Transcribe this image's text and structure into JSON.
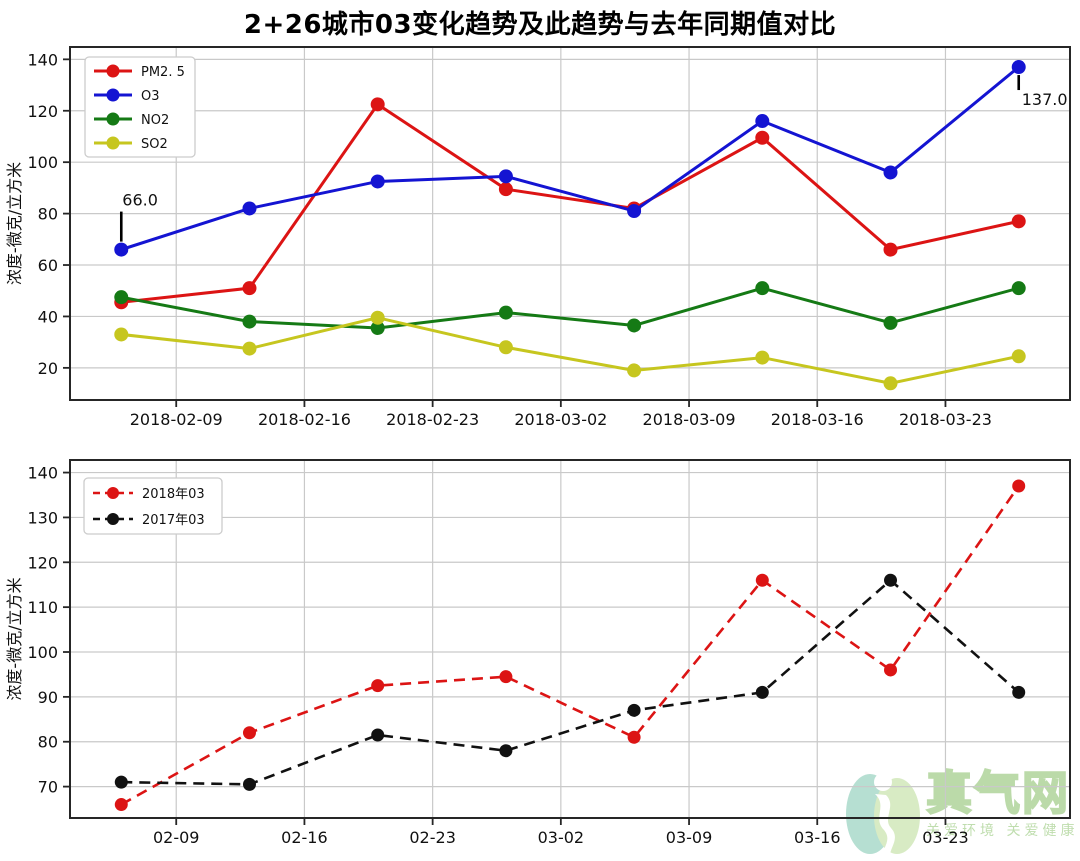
{
  "page": {
    "title": "2+26城市03变化趋势及此趋势与去年同期值对比",
    "background": "#ffffff"
  },
  "watermark": {
    "brand": "真气网",
    "slogan": "关爱环境 关爱健康",
    "logo_teal": "#7cc5ae",
    "logo_green": "#b9dc95",
    "text_green": "#8cc36d"
  },
  "chart_data": [
    {
      "type": "line",
      "title": "2+26城市03变化趋势及此趋势与去年同期值对比",
      "xlabel": "",
      "ylabel": "浓度-微克/立方米",
      "grid": true,
      "legend_position": "upper left",
      "x_tick_labels": [
        "2018-02-09",
        "2018-02-16",
        "2018-02-23",
        "2018-03-02",
        "2018-03-09",
        "2018-03-16",
        "2018-03-23"
      ],
      "x_tick_days": [
        0,
        7,
        14,
        21,
        28,
        35,
        42
      ],
      "x_days": [
        -3,
        4,
        11,
        18,
        25,
        32,
        39,
        46
      ],
      "xlim": [
        -5.8,
        48.8
      ],
      "y_ticks": [
        20,
        40,
        60,
        80,
        100,
        120,
        140
      ],
      "ylim": [
        7.5,
        144.8
      ],
      "series": [
        {
          "name": "PM2. 5",
          "color": "#dc1414",
          "dash": "solid",
          "values": [
            45.5,
            51,
            122.5,
            89.5,
            82,
            109.5,
            66,
            77
          ]
        },
        {
          "name": "O3",
          "color": "#1414d2",
          "dash": "solid",
          "values": [
            66,
            82,
            92.5,
            94.5,
            81,
            116,
            96,
            137
          ]
        },
        {
          "name": "NO2",
          "color": "#157a15",
          "dash": "solid",
          "values": [
            47.5,
            38,
            35.5,
            41.5,
            36.5,
            51,
            37.5,
            51
          ]
        },
        {
          "name": "SO2",
          "color": "#c6c61f",
          "dash": "solid",
          "values": [
            33,
            27.5,
            39.5,
            28,
            19,
            24,
            14,
            24.5
          ]
        }
      ],
      "annotations": [
        {
          "text": "66.0",
          "x_day": -3,
          "y": 66,
          "dir": "up"
        },
        {
          "text": "137.0",
          "x_day": 46,
          "y": 137,
          "dir": "down"
        }
      ]
    },
    {
      "type": "line",
      "title": "",
      "xlabel": "",
      "ylabel": "浓度-微克/立方米",
      "grid": true,
      "legend_position": "upper left",
      "x_tick_labels": [
        "02-09",
        "02-16",
        "02-23",
        "03-02",
        "03-09",
        "03-16",
        "03-23"
      ],
      "x_tick_days": [
        0,
        7,
        14,
        21,
        28,
        35,
        42
      ],
      "x_days": [
        -3,
        4,
        11,
        18,
        25,
        32,
        39,
        46
      ],
      "xlim": [
        -5.8,
        48.8
      ],
      "y_ticks": [
        70,
        80,
        90,
        100,
        110,
        120,
        130,
        140
      ],
      "ylim": [
        63,
        142.8
      ],
      "series": [
        {
          "name": "2018年03",
          "color": "#dc1414",
          "dash": "dashed",
          "values": [
            66,
            82,
            92.5,
            94.5,
            81,
            116,
            96,
            137
          ]
        },
        {
          "name": "2017年03",
          "color": "#111111",
          "dash": "dashed",
          "values": [
            71,
            70.5,
            81.5,
            78,
            87,
            91,
            116,
            91
          ]
        }
      ],
      "annotations": []
    }
  ]
}
